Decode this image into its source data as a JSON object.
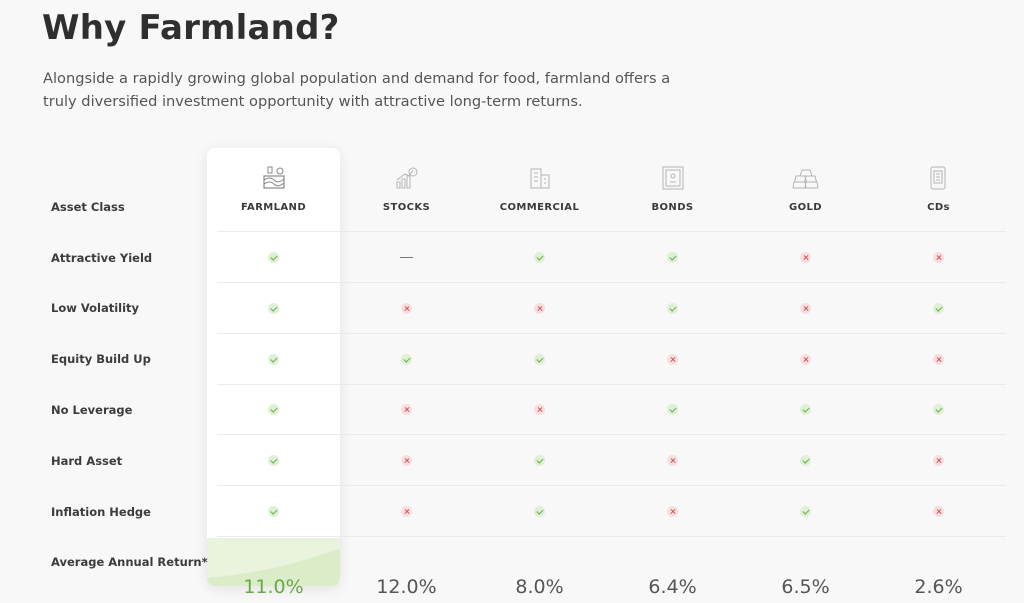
{
  "header": {
    "title": "Why Farmland?",
    "subtitle": "Alongside a rapidly growing global population and demand for food, farmland offers a truly diversified investment opportunity with attractive long-term returns."
  },
  "table": {
    "row_header_label": "Asset Class",
    "columns": [
      {
        "label": "FARMLAND",
        "icon": "farmland-icon"
      },
      {
        "label": "STOCKS",
        "icon": "stocks-icon"
      },
      {
        "label": "COMMERCIAL",
        "icon": "commercial-building-icon"
      },
      {
        "label": "BONDS",
        "icon": "bonds-icon"
      },
      {
        "label": "GOLD",
        "icon": "gold-bars-icon"
      },
      {
        "label": "CDs",
        "icon": "cds-icon"
      }
    ],
    "rows": [
      {
        "label": "Attractive Yield",
        "values": [
          "check",
          "dash",
          "check",
          "check",
          "cross",
          "cross"
        ]
      },
      {
        "label": "Low Volatility",
        "values": [
          "check",
          "cross",
          "cross",
          "check",
          "cross",
          "check"
        ]
      },
      {
        "label": "Equity Build Up",
        "values": [
          "check",
          "check",
          "check",
          "cross",
          "cross",
          "cross"
        ]
      },
      {
        "label": "No Leverage",
        "values": [
          "check",
          "cross",
          "cross",
          "check",
          "check",
          "check"
        ]
      },
      {
        "label": "Hard Asset",
        "values": [
          "check",
          "cross",
          "check",
          "cross",
          "check",
          "cross"
        ]
      },
      {
        "label": "Inflation Hedge",
        "values": [
          "check",
          "cross",
          "check",
          "cross",
          "check",
          "cross"
        ]
      }
    ],
    "return_row": {
      "label": "Average Annual Return*",
      "values": [
        "11.0%",
        "12.0%",
        "8.0%",
        "6.4%",
        "6.5%",
        "2.6%"
      ]
    }
  },
  "colors": {
    "check": "#6ab04c",
    "cross": "#d0505a",
    "highlight": "#6aa845"
  }
}
